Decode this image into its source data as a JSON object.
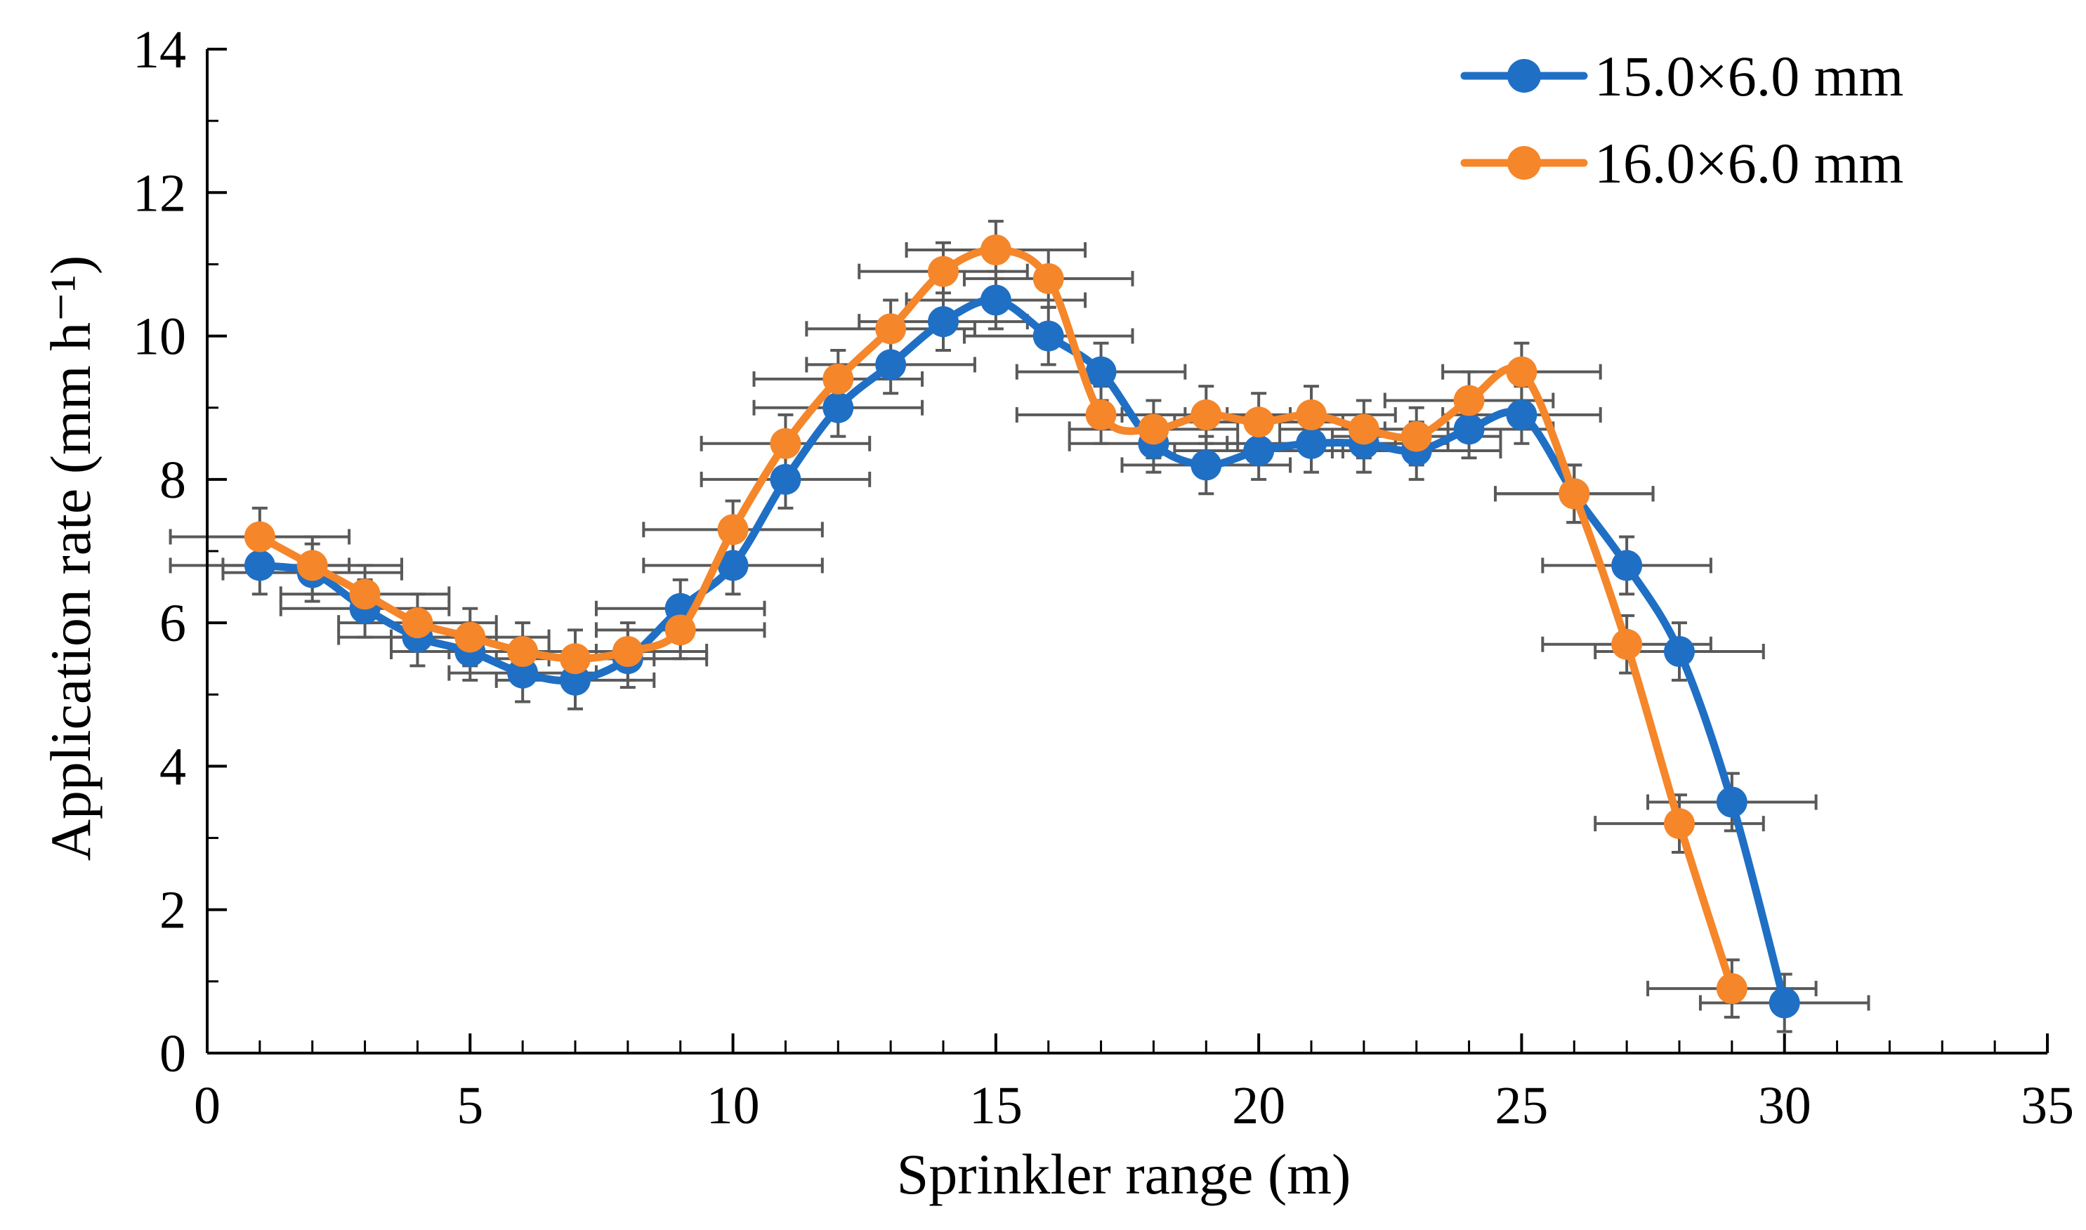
{
  "chart_data": {
    "type": "line",
    "title": "",
    "xlabel": "Sprinkler range (m)",
    "ylabel": "Application rate (mm h⁻¹)",
    "xlim": [
      0,
      35
    ],
    "ylim": [
      0,
      14
    ],
    "xticks": [
      "0",
      "5",
      "10",
      "15",
      "20",
      "25",
      "30",
      "35"
    ],
    "yticks": [
      "0",
      "2",
      "4",
      "6",
      "8",
      "10",
      "12",
      "14"
    ],
    "grid": false,
    "legend_position": "top-right",
    "series": [
      {
        "name": "15.0×6.0 mm",
        "color": "#1f6fc5",
        "x": [
          1,
          2,
          3,
          4,
          5,
          6,
          7,
          8,
          9,
          10,
          11,
          12,
          13,
          14,
          15,
          16,
          17,
          18,
          19,
          20,
          21,
          22,
          23,
          24,
          25,
          26,
          27,
          28,
          29,
          30
        ],
        "y": [
          6.8,
          6.7,
          6.2,
          5.8,
          5.6,
          5.3,
          5.2,
          5.5,
          6.2,
          6.8,
          8.0,
          9.0,
          9.6,
          10.2,
          10.5,
          10.0,
          9.5,
          8.5,
          8.2,
          8.4,
          8.5,
          8.5,
          8.4,
          8.7,
          8.9,
          7.8,
          6.8,
          5.6,
          3.5,
          0.7
        ],
        "x_err": [
          1.7,
          1.7,
          1.6,
          1.5,
          1.5,
          1.4,
          1.5,
          1.5,
          1.6,
          1.7,
          1.6,
          1.6,
          1.6,
          1.6,
          1.7,
          1.6,
          1.6,
          1.6,
          1.6,
          1.6,
          1.6,
          1.6,
          1.6,
          1.6,
          1.5,
          1.5,
          1.6,
          1.6,
          1.6,
          1.6
        ],
        "y_err": [
          0.4,
          0.4,
          0.4,
          0.4,
          0.4,
          0.4,
          0.4,
          0.4,
          0.4,
          0.4,
          0.4,
          0.4,
          0.4,
          0.4,
          0.4,
          0.4,
          0.4,
          0.4,
          0.4,
          0.4,
          0.4,
          0.4,
          0.4,
          0.4,
          0.4,
          0.4,
          0.4,
          0.4,
          0.4,
          0.4
        ]
      },
      {
        "name": "16.0×6.0 mm",
        "color": "#f5862a",
        "x": [
          1,
          2,
          3,
          4,
          5,
          6,
          7,
          8,
          9,
          10,
          11,
          12,
          13,
          14,
          15,
          16,
          17,
          18,
          19,
          20,
          21,
          22,
          23,
          24,
          25,
          26,
          27,
          28,
          29
        ],
        "y": [
          7.2,
          6.8,
          6.4,
          6.0,
          5.8,
          5.6,
          5.5,
          5.6,
          5.9,
          7.3,
          8.5,
          9.4,
          10.1,
          10.9,
          11.2,
          10.8,
          8.9,
          8.7,
          8.9,
          8.8,
          8.9,
          8.7,
          8.6,
          9.1,
          9.5,
          7.8,
          5.7,
          3.2,
          0.9
        ],
        "x_err": [
          1.7,
          1.7,
          1.6,
          1.5,
          1.5,
          1.4,
          1.5,
          1.5,
          1.6,
          1.7,
          1.6,
          1.6,
          1.6,
          1.6,
          1.7,
          1.6,
          1.6,
          1.6,
          1.6,
          1.6,
          1.6,
          1.6,
          1.6,
          1.6,
          1.5,
          1.5,
          1.6,
          1.6,
          1.6
        ],
        "y_err": [
          0.4,
          0.4,
          0.4,
          0.4,
          0.4,
          0.4,
          0.4,
          0.4,
          0.4,
          0.4,
          0.4,
          0.4,
          0.4,
          0.4,
          0.4,
          0.4,
          0.4,
          0.4,
          0.4,
          0.4,
          0.4,
          0.4,
          0.4,
          0.4,
          0.4,
          0.4,
          0.4,
          0.4,
          0.4
        ]
      }
    ]
  }
}
